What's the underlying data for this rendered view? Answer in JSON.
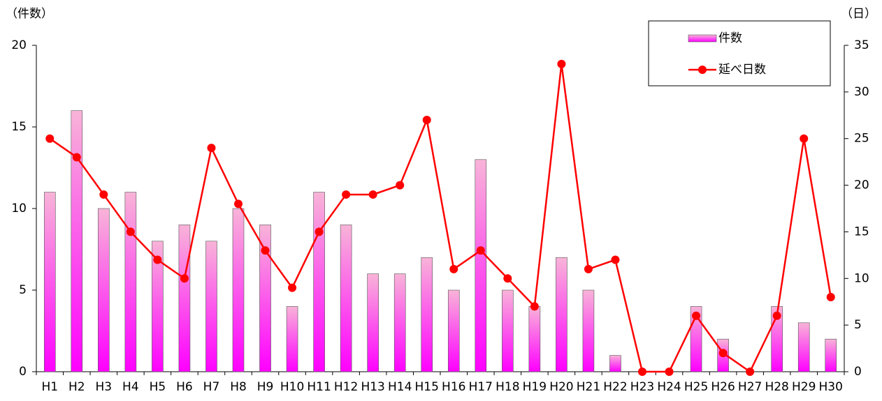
{
  "chart_data": {
    "type": "bar-line",
    "y_label": "（件数）",
    "y2_label": "（日）",
    "categories": [
      "H1",
      "H2",
      "H3",
      "H4",
      "H5",
      "H6",
      "H7",
      "H8",
      "H9",
      "H10",
      "H11",
      "H12",
      "H13",
      "H14",
      "H15",
      "H16",
      "H17",
      "H18",
      "H19",
      "H20",
      "H21",
      "H22",
      "H23",
      "H24",
      "H25",
      "H26",
      "H27",
      "H28",
      "H29",
      "H30"
    ],
    "series": [
      {
        "name": "件数",
        "type": "bar",
        "color": "#ff00ff",
        "values": [
          11,
          16,
          10,
          11,
          8,
          9,
          8,
          10,
          9,
          4,
          11,
          9,
          6,
          6,
          7,
          5,
          13,
          5,
          4,
          7,
          5,
          1,
          0,
          0,
          4,
          2,
          0,
          4,
          3,
          2
        ]
      },
      {
        "name": "延べ日数",
        "type": "line",
        "axis": "y2",
        "color": "#ff0000",
        "values": [
          25,
          23,
          19,
          15,
          12,
          10,
          24,
          18,
          13,
          9,
          15,
          19,
          19,
          20,
          27,
          11,
          13,
          10,
          7,
          33,
          11,
          12,
          0,
          0,
          6,
          2,
          0,
          6,
          25,
          8
        ]
      }
    ],
    "ylim": [
      0,
      20
    ],
    "yticks": [
      0,
      5,
      10,
      15,
      20
    ],
    "y2lim": [
      0,
      35
    ],
    "y2ticks": [
      0,
      5,
      10,
      15,
      20,
      25,
      30,
      35
    ],
    "legend": "top-right"
  }
}
